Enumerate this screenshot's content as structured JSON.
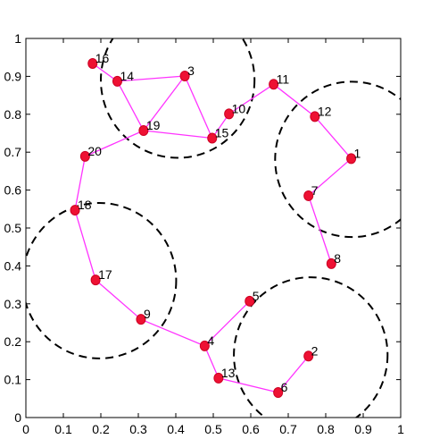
{
  "chart_data": {
    "type": "scatter",
    "title": "",
    "xlabel": "",
    "ylabel": "",
    "xlim": [
      0,
      1
    ],
    "ylim": [
      0,
      1
    ],
    "xticks": [
      "0",
      "0.1",
      "0.2",
      "0.3",
      "0.4",
      "0.5",
      "0.6",
      "0.7",
      "0.8",
      "0.9",
      "1"
    ],
    "yticks": [
      "0",
      "0.1",
      "0.2",
      "0.3",
      "0.4",
      "0.5",
      "0.6",
      "0.7",
      "0.8",
      "0.9",
      "1"
    ],
    "grid": false,
    "nodes": [
      {
        "label": "1",
        "x": 0.868,
        "y": 0.683
      },
      {
        "label": "2",
        "x": 0.754,
        "y": 0.162
      },
      {
        "label": "3",
        "x": 0.424,
        "y": 0.901
      },
      {
        "label": "4",
        "x": 0.477,
        "y": 0.189
      },
      {
        "label": "5",
        "x": 0.597,
        "y": 0.307
      },
      {
        "label": "6",
        "x": 0.673,
        "y": 0.066
      },
      {
        "label": "7",
        "x": 0.754,
        "y": 0.585
      },
      {
        "label": "8",
        "x": 0.815,
        "y": 0.406
      },
      {
        "label": "9",
        "x": 0.307,
        "y": 0.259
      },
      {
        "label": "10",
        "x": 0.542,
        "y": 0.801
      },
      {
        "label": "11",
        "x": 0.661,
        "y": 0.879
      },
      {
        "label": "12",
        "x": 0.771,
        "y": 0.794
      },
      {
        "label": "13",
        "x": 0.514,
        "y": 0.104
      },
      {
        "label": "14",
        "x": 0.244,
        "y": 0.887
      },
      {
        "label": "15",
        "x": 0.497,
        "y": 0.737
      },
      {
        "label": "16",
        "x": 0.178,
        "y": 0.934
      },
      {
        "label": "17",
        "x": 0.186,
        "y": 0.363
      },
      {
        "label": "18",
        "x": 0.131,
        "y": 0.547
      },
      {
        "label": "19",
        "x": 0.314,
        "y": 0.757
      },
      {
        "label": "20",
        "x": 0.158,
        "y": 0.689
      }
    ],
    "edges": [
      [
        "16",
        "14"
      ],
      [
        "14",
        "3"
      ],
      [
        "14",
        "19"
      ],
      [
        "3",
        "19"
      ],
      [
        "3",
        "15"
      ],
      [
        "19",
        "15"
      ],
      [
        "15",
        "10"
      ],
      [
        "10",
        "11"
      ],
      [
        "11",
        "12"
      ],
      [
        "12",
        "1"
      ],
      [
        "1",
        "7"
      ],
      [
        "7",
        "8"
      ],
      [
        "19",
        "20"
      ],
      [
        "20",
        "18"
      ],
      [
        "18",
        "17"
      ],
      [
        "17",
        "9"
      ],
      [
        "9",
        "4"
      ],
      [
        "4",
        "5"
      ],
      [
        "4",
        "13"
      ],
      [
        "13",
        "6"
      ],
      [
        "6",
        "2"
      ]
    ],
    "circles": [
      {
        "cx": 0.405,
        "cy": 0.89,
        "r": 0.205
      },
      {
        "cx": 0.87,
        "cy": 0.681,
        "r": 0.205
      },
      {
        "cx": 0.196,
        "cy": 0.361,
        "r": 0.205
      },
      {
        "cx": 0.76,
        "cy": 0.165,
        "r": 0.205
      }
    ],
    "colors": {
      "edge": "#ff33ff",
      "node": "#ee1133",
      "circle": "#000000"
    }
  }
}
